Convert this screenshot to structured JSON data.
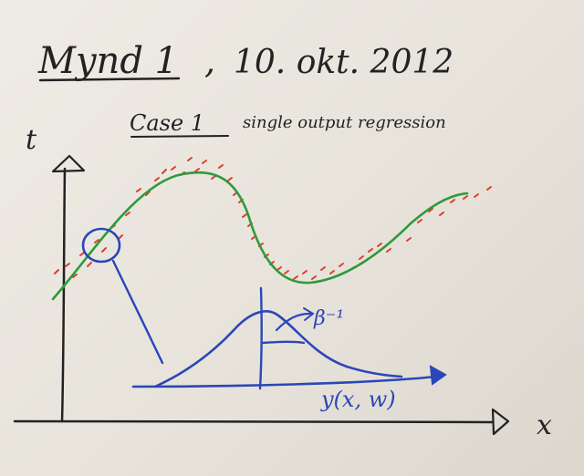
{
  "heading": {
    "title": "Mynd 1",
    "separator": ",",
    "date": "10. okt. 2012"
  },
  "subheading": {
    "case_label": "Case 1",
    "description": "single output regression"
  },
  "axes": {
    "vertical_label": "t",
    "horizontal_label": "x"
  },
  "annotations": {
    "precision_label": "β⁻¹",
    "mean_label": "y(x, w)"
  },
  "ink_colors": {
    "pen_black": "#222222",
    "curve_green": "#2f9a3c",
    "points_red": "#e23a2a",
    "pen_blue": "#2b46b8"
  }
}
